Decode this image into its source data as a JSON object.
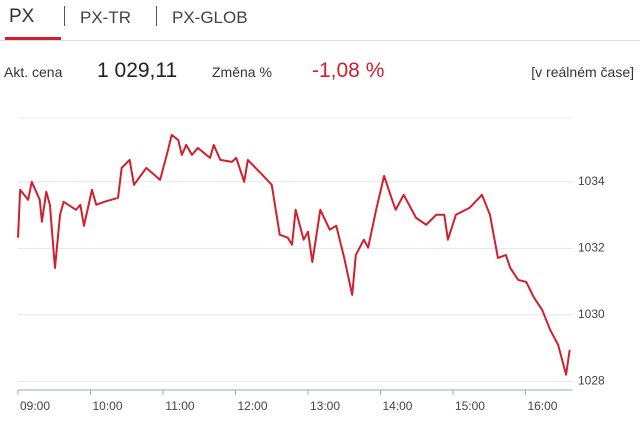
{
  "tabs": [
    "PX",
    "PX-TR",
    "PX-GLOB"
  ],
  "stats": {
    "price_label": "Akt. cena",
    "price": "1 029,11",
    "change_label": "Změna %",
    "change": "-1,08 %",
    "realtime": "[v reálném čase]"
  },
  "chart_data": {
    "type": "line",
    "color": "#d0202e",
    "grid": true,
    "x": [
      9.0,
      9.03,
      9.14,
      9.19,
      9.3,
      9.33,
      9.39,
      9.44,
      9.51,
      9.58,
      9.63,
      9.8,
      9.86,
      9.91,
      10.02,
      10.08,
      10.19,
      10.38,
      10.43,
      10.54,
      10.6,
      10.77,
      10.96,
      11.07,
      11.12,
      11.21,
      11.26,
      11.32,
      11.4,
      11.48,
      11.65,
      11.7,
      11.79,
      11.95,
      12.01,
      12.12,
      12.17,
      12.37,
      12.5,
      12.61,
      12.72,
      12.78,
      12.83,
      12.94,
      13.0,
      13.06,
      13.17,
      13.3,
      13.39,
      13.5,
      13.61,
      13.66,
      13.77,
      13.83,
      13.94,
      14.05,
      14.16,
      14.21,
      14.32,
      14.49,
      14.63,
      14.77,
      14.88,
      14.93,
      15.04,
      15.23,
      15.4,
      15.51,
      15.62,
      15.73,
      15.79,
      15.9,
      16.01,
      16.12,
      16.23,
      16.34,
      16.45,
      16.56,
      16.61
    ],
    "values": [
      1032.32,
      1033.76,
      1033.46,
      1034.0,
      1033.46,
      1032.8,
      1033.7,
      1033.31,
      1031.41,
      1033.01,
      1033.4,
      1033.16,
      1033.31,
      1032.68,
      1033.76,
      1033.31,
      1033.4,
      1033.52,
      1034.42,
      1034.66,
      1033.91,
      1034.42,
      1034.06,
      1034.96,
      1035.41,
      1035.26,
      1034.81,
      1035.11,
      1034.81,
      1035.02,
      1034.72,
      1035.11,
      1034.66,
      1034.6,
      1034.72,
      1034.0,
      1034.66,
      1034.21,
      1033.91,
      1032.41,
      1032.32,
      1032.11,
      1033.16,
      1032.26,
      1032.5,
      1031.59,
      1033.16,
      1032.56,
      1032.68,
      1031.71,
      1030.6,
      1031.8,
      1032.26,
      1032.02,
      1033.16,
      1034.18,
      1033.46,
      1033.16,
      1033.61,
      1032.92,
      1032.71,
      1033.01,
      1033.01,
      1032.26,
      1033.01,
      1033.22,
      1033.61,
      1033.01,
      1031.71,
      1031.8,
      1031.41,
      1031.05,
      1030.99,
      1030.51,
      1030.15,
      1029.55,
      1029.1,
      1028.2,
      1028.95
    ],
    "xlim": [
      9,
      16.65
    ],
    "xticks": [
      {
        "value": 9,
        "label": "09:00"
      },
      {
        "value": 10,
        "label": "10:00"
      },
      {
        "value": 11,
        "label": "11:00"
      },
      {
        "value": 12,
        "label": "12:00"
      },
      {
        "value": 13,
        "label": "13:00"
      },
      {
        "value": 14,
        "label": "14:00"
      },
      {
        "value": 15,
        "label": "15:00"
      },
      {
        "value": 16,
        "label": "16:00"
      }
    ],
    "ylim": [
      1027.74,
      1035.92
    ],
    "yticks": [
      1028,
      1030,
      1032,
      1034
    ]
  }
}
